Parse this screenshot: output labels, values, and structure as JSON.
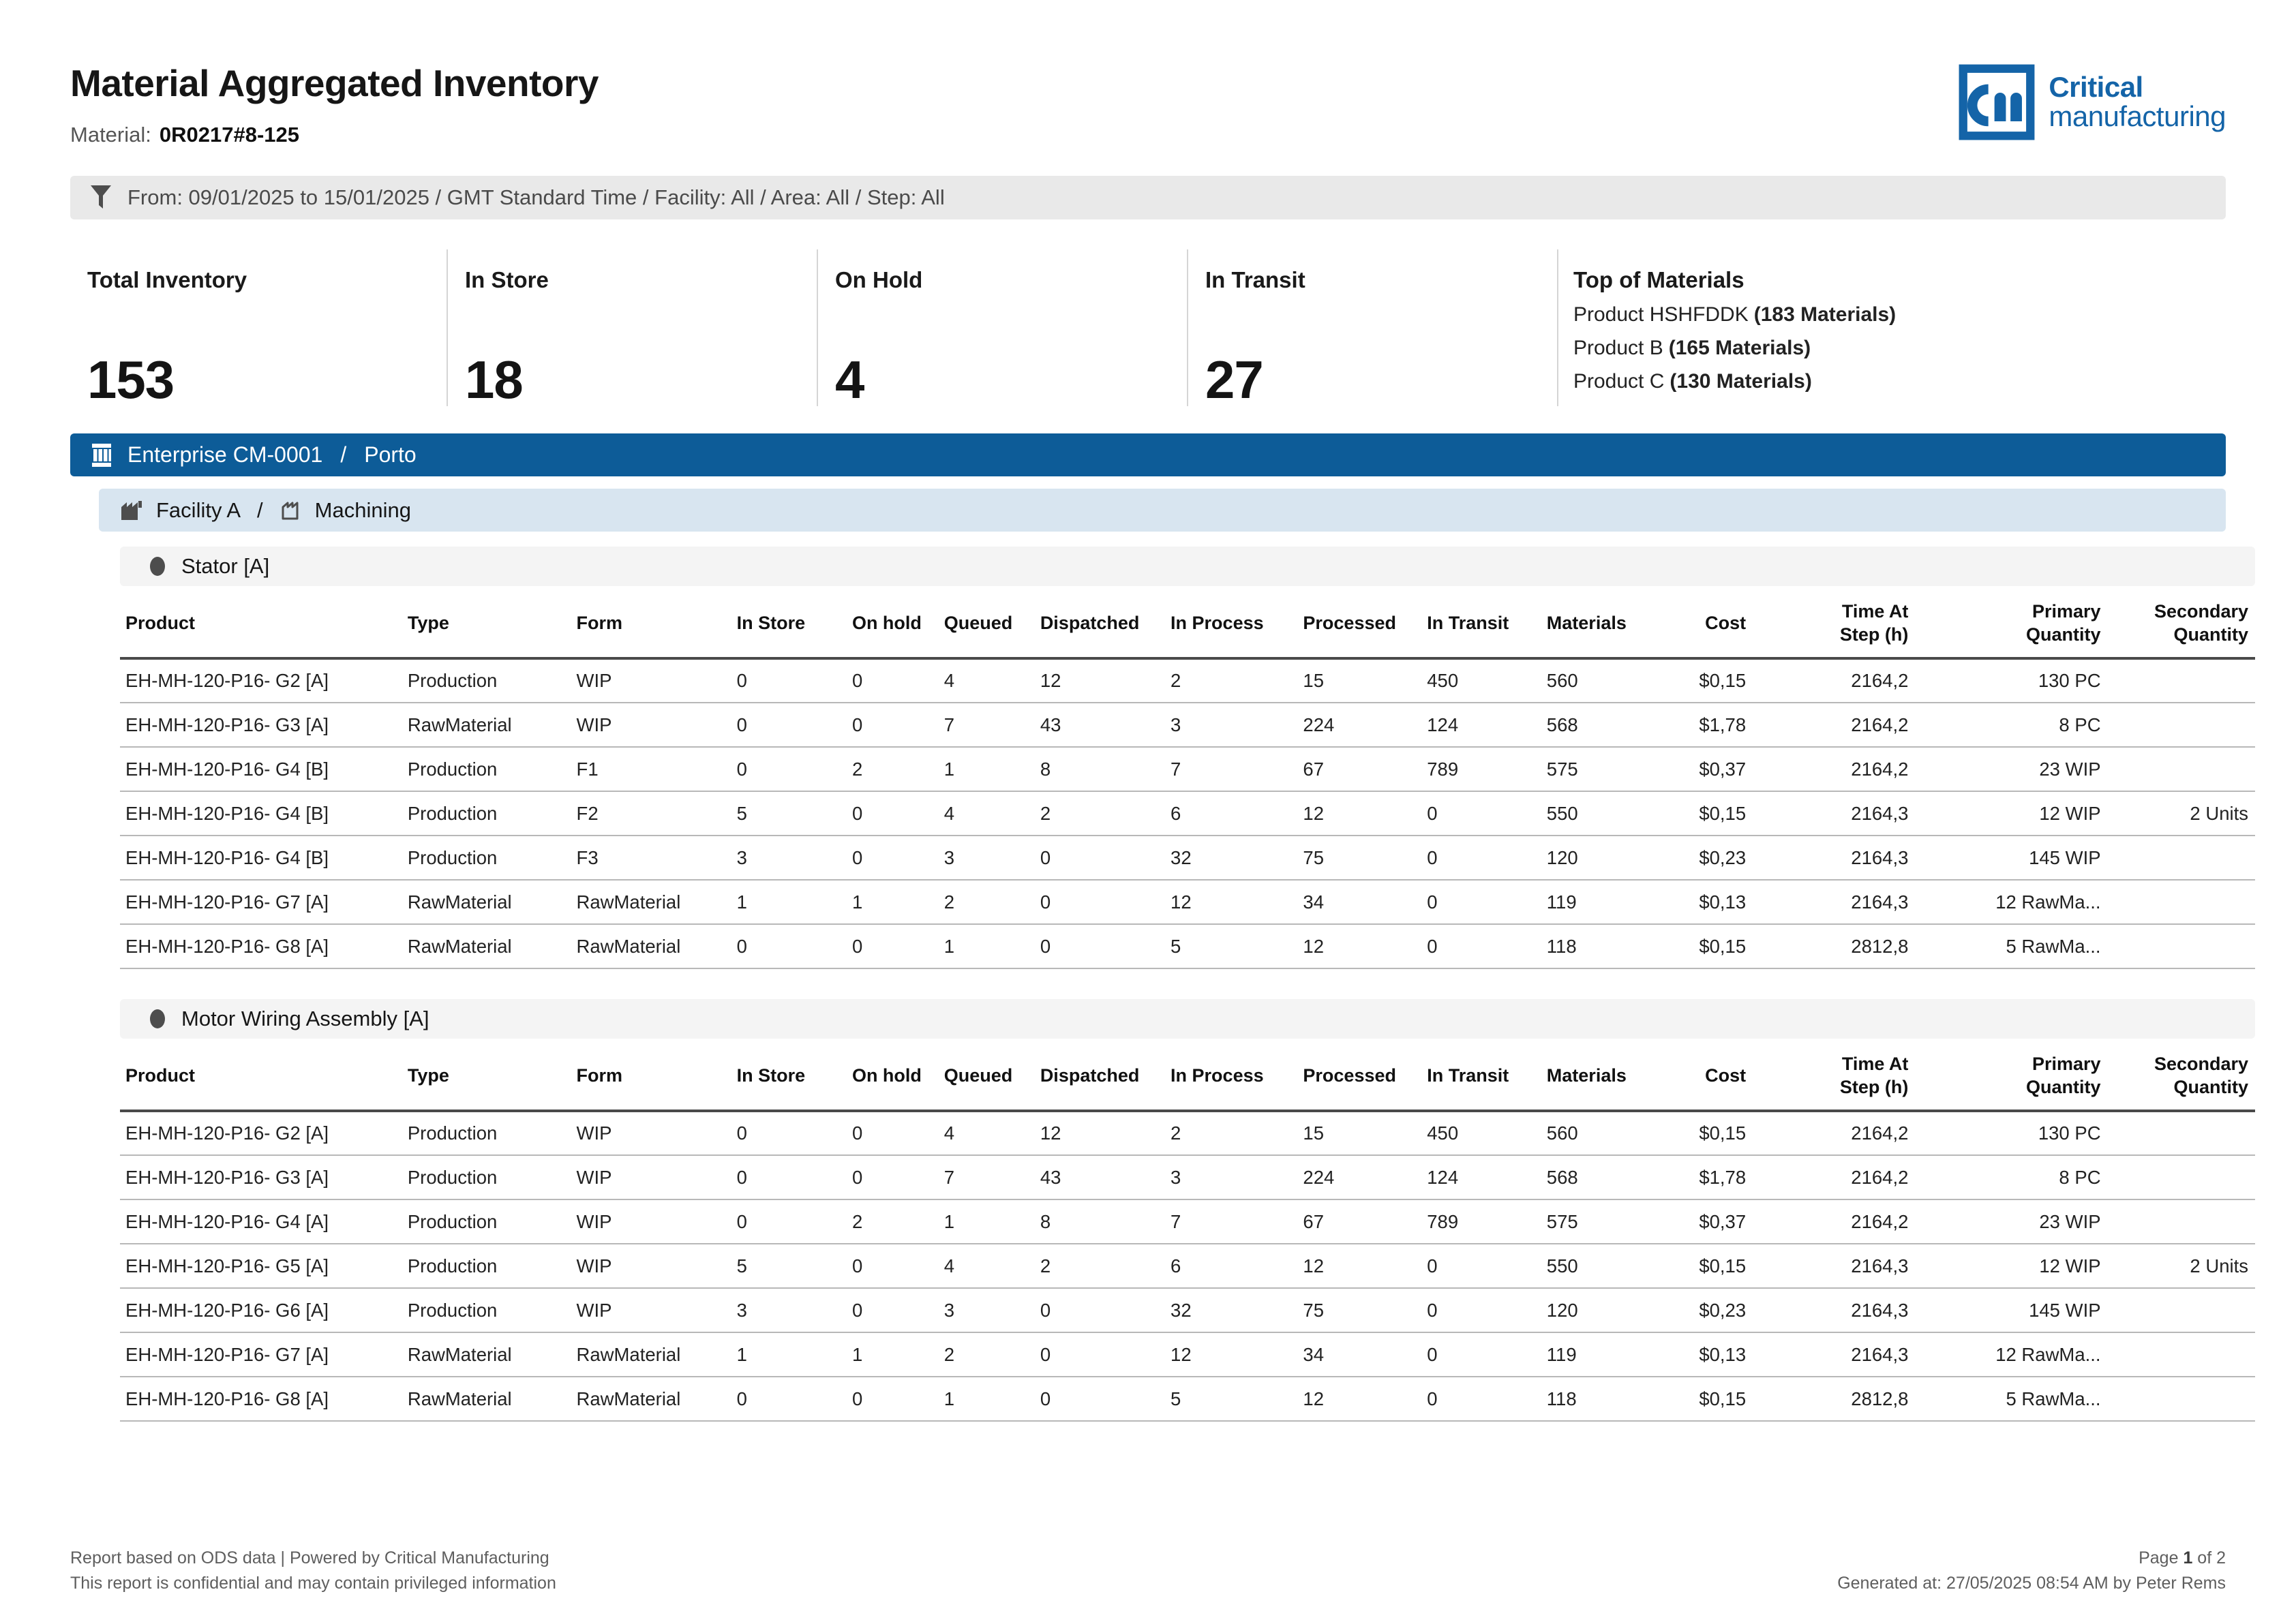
{
  "colors": {
    "brand_blue": "#1464a8",
    "bar_blue": "#0d5c98",
    "bar_light_blue": "#d8e5f0",
    "filter_bg": "#e9e9e9",
    "section_bg": "#f4f4f4"
  },
  "header": {
    "title": "Material Aggregated Inventory",
    "material_label": "Material:",
    "material_value": "0R0217#8-125",
    "logo": {
      "brand_top": "Critical",
      "brand_bottom": "manufacturing"
    }
  },
  "filter": {
    "text": "From: 09/01/2025 to 15/01/2025 / GMT Standard Time / Facility: All / Area: All / Step: All"
  },
  "summary": {
    "cards": [
      {
        "label": "Total Inventory",
        "value": "153"
      },
      {
        "label": "In Store",
        "value": "18"
      },
      {
        "label": "On Hold",
        "value": "4"
      },
      {
        "label": "In Transit",
        "value": "27"
      }
    ],
    "top_of_materials": {
      "title": "Top of Materials",
      "items": [
        {
          "name": "Product HSHFDDK",
          "count": "(183 Materials)"
        },
        {
          "name": "Product B",
          "count": "(165 Materials)"
        },
        {
          "name": "Product C",
          "count": "(130 Materials)"
        }
      ]
    }
  },
  "enterprise_bar": {
    "name": "Enterprise CM-0001",
    "separator": "/",
    "site": "Porto"
  },
  "facility_bar": {
    "facility": "Facility A",
    "separator": "/",
    "area": "Machining"
  },
  "table_columns": [
    "Product",
    "Type",
    "Form",
    "In Store",
    "On hold",
    "Queued",
    "Dispatched",
    "In Process",
    "Processed",
    "In Transit",
    "Materials",
    "Cost",
    "Time At\nStep (h)",
    "Primary\nQuantity",
    "Secondary\nQuantity"
  ],
  "sections": [
    {
      "label": "Stator [A]",
      "rows": [
        [
          "EH-MH-120-P16- G2 [A]",
          "Production",
          "WIP",
          "0",
          "0",
          "4",
          "12",
          "2",
          "15",
          "450",
          "560",
          "$0,15",
          "2164,2",
          "130 PC",
          ""
        ],
        [
          "EH-MH-120-P16- G3 [A]",
          "RawMaterial",
          "WIP",
          "0",
          "0",
          "7",
          "43",
          "3",
          "224",
          "124",
          "568",
          "$1,78",
          "2164,2",
          "8 PC",
          ""
        ],
        [
          "EH-MH-120-P16- G4 [B]",
          "Production",
          "F1",
          "0",
          "2",
          "1",
          "8",
          "7",
          "67",
          "789",
          "575",
          "$0,37",
          "2164,2",
          "23 WIP",
          ""
        ],
        [
          "EH-MH-120-P16- G4 [B]",
          "Production",
          "F2",
          "5",
          "0",
          "4",
          "2",
          "6",
          "12",
          "0",
          "550",
          "$0,15",
          "2164,3",
          "12 WIP",
          "2 Units"
        ],
        [
          "EH-MH-120-P16- G4 [B]",
          "Production",
          "F3",
          "3",
          "0",
          "3",
          "0",
          "32",
          "75",
          "0",
          "120",
          "$0,23",
          "2164,3",
          "145 WIP",
          ""
        ],
        [
          "EH-MH-120-P16- G7 [A]",
          "RawMaterial",
          "RawMaterial",
          "1",
          "1",
          "2",
          "0",
          "12",
          "34",
          "0",
          "119",
          "$0,13",
          "2164,3",
          "12 RawMa...",
          ""
        ],
        [
          "EH-MH-120-P16- G8 [A]",
          "RawMaterial",
          "RawMaterial",
          "0",
          "0",
          "1",
          "0",
          "5",
          "12",
          "0",
          "118",
          "$0,15",
          "2812,8",
          "5 RawMa...",
          ""
        ]
      ]
    },
    {
      "label": "Motor Wiring Assembly [A]",
      "rows": [
        [
          "EH-MH-120-P16- G2 [A]",
          "Production",
          "WIP",
          "0",
          "0",
          "4",
          "12",
          "2",
          "15",
          "450",
          "560",
          "$0,15",
          "2164,2",
          "130 PC",
          ""
        ],
        [
          "EH-MH-120-P16- G3 [A]",
          "Production",
          "WIP",
          "0",
          "0",
          "7",
          "43",
          "3",
          "224",
          "124",
          "568",
          "$1,78",
          "2164,2",
          "8 PC",
          ""
        ],
        [
          "EH-MH-120-P16- G4 [A]",
          "Production",
          "WIP",
          "0",
          "2",
          "1",
          "8",
          "7",
          "67",
          "789",
          "575",
          "$0,37",
          "2164,2",
          "23 WIP",
          ""
        ],
        [
          "EH-MH-120-P16- G5 [A]",
          "Production",
          "WIP",
          "5",
          "0",
          "4",
          "2",
          "6",
          "12",
          "0",
          "550",
          "$0,15",
          "2164,3",
          "12 WIP",
          "2 Units"
        ],
        [
          "EH-MH-120-P16- G6 [A]",
          "Production",
          "WIP",
          "3",
          "0",
          "3",
          "0",
          "32",
          "75",
          "0",
          "120",
          "$0,23",
          "2164,3",
          "145 WIP",
          ""
        ],
        [
          "EH-MH-120-P16- G7 [A]",
          "RawMaterial",
          "RawMaterial",
          "1",
          "1",
          "2",
          "0",
          "12",
          "34",
          "0",
          "119",
          "$0,13",
          "2164,3",
          "12 RawMa...",
          ""
        ],
        [
          "EH-MH-120-P16- G8 [A]",
          "RawMaterial",
          "RawMaterial",
          "0",
          "0",
          "1",
          "0",
          "5",
          "12",
          "0",
          "118",
          "$0,15",
          "2812,8",
          "5 RawMa...",
          ""
        ]
      ]
    }
  ],
  "footer": {
    "left_line1": "Report based on ODS data  |  Powered by Critical Manufacturing",
    "left_line2": "This report is confidential and may contain privileged information",
    "page_prefix": "Page",
    "page_number": "1",
    "page_suffix": "of 2",
    "generated": "Generated at: 27/05/2025 08:54 AM by Peter Rems"
  }
}
